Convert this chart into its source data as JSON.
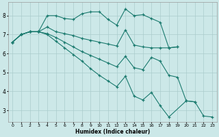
{
  "xlabel": "Humidex (Indice chaleur)",
  "bg_color": "#cce8e8",
  "grid_color": "#aacccc",
  "line_color": "#1a7a6e",
  "xlim": [
    -0.5,
    23.5
  ],
  "ylim": [
    2.4,
    8.7
  ],
  "yticks": [
    3,
    4,
    5,
    6,
    7,
    8
  ],
  "xticks": [
    0,
    1,
    2,
    3,
    4,
    5,
    6,
    7,
    8,
    9,
    10,
    11,
    12,
    13,
    14,
    15,
    16,
    17,
    18,
    19,
    20,
    21,
    22,
    23
  ],
  "lines": [
    {
      "x": [
        0,
        1,
        2,
        3,
        4,
        5,
        6,
        7,
        8,
        9,
        10,
        11,
        12,
        13,
        14,
        15,
        16,
        17,
        18,
        19
      ],
      "y": [
        6.6,
        7.0,
        7.15,
        7.15,
        8.0,
        8.0,
        7.85,
        7.8,
        8.1,
        8.2,
        8.2,
        7.8,
        7.5,
        8.35,
        8.0,
        8.05,
        7.85,
        7.65,
        6.3,
        6.35
      ]
    },
    {
      "x": [
        0,
        1,
        2,
        3,
        4,
        5,
        6,
        7,
        8,
        9,
        10,
        11,
        12,
        13,
        14,
        15,
        16,
        17,
        18,
        19
      ],
      "y": [
        6.6,
        7.0,
        7.15,
        7.15,
        7.4,
        7.15,
        7.05,
        6.95,
        6.8,
        6.7,
        6.6,
        6.5,
        6.4,
        7.25,
        6.45,
        6.35,
        6.3,
        6.3,
        6.3,
        6.35
      ]
    },
    {
      "x": [
        0,
        1,
        2,
        3,
        4,
        5,
        6,
        7,
        8,
        9,
        10,
        11,
        12,
        13,
        14,
        15,
        16,
        17,
        18,
        19,
        20,
        21
      ],
      "y": [
        6.6,
        7.0,
        7.15,
        7.15,
        7.05,
        6.85,
        6.6,
        6.35,
        6.1,
        5.9,
        5.7,
        5.5,
        5.3,
        5.85,
        5.25,
        5.15,
        5.8,
        5.6,
        4.85,
        4.75,
        3.5,
        3.45
      ]
    },
    {
      "x": [
        0,
        1,
        2,
        3,
        4,
        5,
        6,
        7,
        8,
        9,
        10,
        11,
        12,
        13,
        14,
        15,
        16,
        17,
        18,
        20,
        21,
        22,
        23
      ],
      "y": [
        6.6,
        7.0,
        7.15,
        7.15,
        7.0,
        6.65,
        6.3,
        5.95,
        5.6,
        5.2,
        4.85,
        4.55,
        4.25,
        4.8,
        3.75,
        3.55,
        3.95,
        3.25,
        2.65,
        3.5,
        3.45,
        2.7,
        2.65
      ]
    }
  ]
}
